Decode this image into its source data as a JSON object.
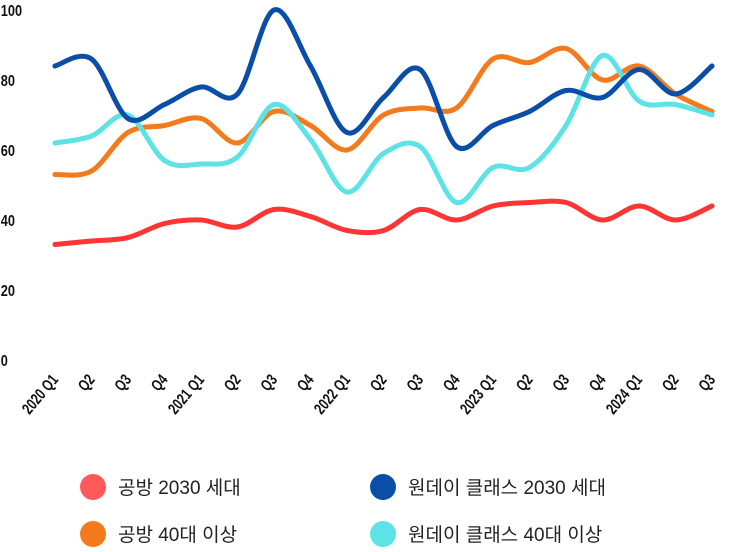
{
  "chart_data": {
    "type": "line",
    "title": "",
    "xlabel": "",
    "ylabel": "",
    "ylim": [
      0,
      100
    ],
    "yticks": [
      "0",
      "20",
      "40",
      "60",
      "80",
      "100"
    ],
    "categories": [
      "2020 Q1",
      "Q2",
      "Q3",
      "Q4",
      "2021 Q1",
      "Q2",
      "Q3",
      "Q4",
      "2022 Q1",
      "Q2",
      "Q3",
      "Q4",
      "2023 Q1",
      "Q2",
      "Q3",
      "Q4",
      "2024 Q1",
      "Q2",
      "Q3"
    ],
    "grid": false,
    "legend_position": "bottom",
    "series": [
      {
        "name": "공방 2030 세대",
        "color": "#ff3535",
        "legend_color": "#ff5a5a",
        "values": [
          33,
          34,
          35,
          39,
          40,
          38,
          43,
          41,
          37,
          37,
          43,
          40,
          44,
          45,
          45,
          40,
          44,
          40,
          44
        ]
      },
      {
        "name": "원데이 클래스 2030 세대",
        "color": "#0a4ea8",
        "legend_color": "#0a4ea8",
        "values": [
          84,
          86,
          69,
          73,
          78,
          76,
          100,
          84,
          65,
          75,
          83,
          61,
          67,
          71,
          77,
          75,
          83,
          76,
          84
        ]
      },
      {
        "name": "공방 40대 이상",
        "color": "#f47a1c",
        "legend_color": "#f47a1c",
        "values": [
          53,
          54,
          65,
          67,
          69,
          62,
          71,
          67,
          60,
          70,
          72,
          72,
          86,
          85,
          89,
          80,
          84,
          76,
          71
        ]
      },
      {
        "name": "원데이 클래스 40대 이상",
        "color": "#5de2e6",
        "legend_color": "#5de2e6",
        "values": [
          62,
          64,
          70,
          57,
          56,
          58,
          73,
          63,
          48,
          59,
          61,
          45,
          55,
          55,
          67,
          87,
          74,
          73,
          70
        ]
      }
    ]
  }
}
